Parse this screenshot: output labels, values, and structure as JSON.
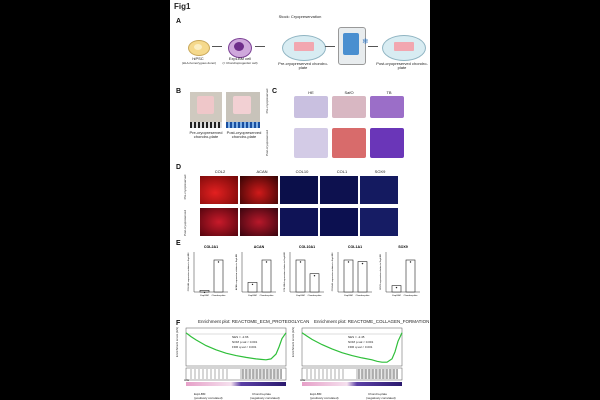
{
  "figure": {
    "title": "Fig1",
    "panels": {
      "a": "A",
      "b": "B",
      "c": "C",
      "d": "D",
      "e": "E",
      "f": "F"
    }
  },
  "panel_a": {
    "hipsc_title": "hiPSC",
    "hipsc_sub": "(HLA-homozygous donor)",
    "explbm_title": "ExpLBM cell",
    "explbm_sub": "(= Chondroprogenitor cell)",
    "pre_label": "Pre-cryopreserved chondro-plate",
    "stock_label": "Stock: Cryopreservation",
    "post_label": "Post-cryopreserved chondro-plate",
    "colors": {
      "hipsc": "#f5d98c",
      "explbm": "#8a4fa6",
      "plate": "#f2a7b0",
      "dish": "#d8ecf2"
    }
  },
  "panel_b": {
    "pre_label": "Pre-cryopreserved chondro-plate",
    "post_label": "Post-cryopreserved chondro-plate"
  },
  "panel_c": {
    "columns": [
      "HE",
      "SafO",
      "TB"
    ],
    "rows": [
      "Pre-cryopreserved",
      "Post-cryopreserved"
    ]
  },
  "panel_d": {
    "columns": [
      "COL2",
      "ACAN",
      "COL10",
      "COL1",
      "SOX9"
    ],
    "rows": [
      "Pre-cryopreserved",
      "Post-cryopreserved"
    ]
  },
  "panel_e": {
    "genes": [
      "COL2A1",
      "ACAN",
      "COL10A1",
      "COL1A1",
      "SOX9"
    ],
    "xlabels": [
      "ExpLBM",
      "Chondro-plate"
    ],
    "ylabels": [
      "COL2A1 expression relative to ExpLBM",
      "ACAN expression relative to ExpLBM",
      "COL10A1 expression relative to ExpLBM",
      "COL1A1 expression relative to ExpLBM",
      "SOX9 expression relative to ExpLBM"
    ]
  },
  "panel_f": {
    "plots": [
      {
        "title": "Enrichment plot: REACTOME_ECM_PROTEOGLYCAN",
        "nes": "NES = -2.66",
        "nom": "NOM p-val < 0.001",
        "fdr": "FDR q-val < 0.001"
      },
      {
        "title": "Enrichment plot: REACTOME_COLLAGEN_FORMATION",
        "nes": "NES = -2.45",
        "nom": "NOM p-val < 0.001",
        "fdr": "FDR q-val < 0.001"
      }
    ],
    "ylabel": "Enrichment score (ES)",
    "hits": "Hits",
    "left_group": "ExpLBM",
    "left_sub": "(positively correlated)",
    "right_group": "Chondro-plate",
    "right_sub": "(negatively correlated)",
    "curve_color": "#2fbf3a"
  },
  "chart_data": [
    {
      "type": "bar",
      "panel": "E",
      "categories": [
        "ExpLBM",
        "Chondro-plate"
      ],
      "series": [
        {
          "name": "COL2A1",
          "values": [
            0.05,
            1.0
          ]
        },
        {
          "name": "ACAN",
          "values": [
            0.3,
            1.0
          ]
        },
        {
          "name": "COL10A1",
          "values": [
            0.7,
            0.4
          ]
        },
        {
          "name": "COL1A1",
          "values": [
            1.0,
            0.95
          ]
        },
        {
          "name": "SOX9",
          "values": [
            0.2,
            1.0
          ]
        }
      ]
    },
    {
      "type": "line",
      "panel": "F-left",
      "x": [
        0,
        0.05,
        0.1,
        0.2,
        0.3,
        0.4,
        0.5,
        0.6,
        0.7,
        0.75,
        0.8,
        0.85,
        0.9,
        0.93,
        0.96,
        1.0
      ],
      "series": [
        {
          "values": [
            0,
            -0.08,
            -0.15,
            -0.27,
            -0.36,
            -0.43,
            -0.48,
            -0.52,
            -0.55,
            -0.56,
            -0.57,
            -0.55,
            -0.45,
            -0.3,
            -0.12,
            0
          ]
        }
      ]
    },
    {
      "type": "line",
      "panel": "F-right",
      "x": [
        0,
        0.05,
        0.1,
        0.2,
        0.3,
        0.4,
        0.5,
        0.6,
        0.7,
        0.75,
        0.8,
        0.85,
        0.9,
        0.93,
        0.96,
        1.0
      ],
      "series": [
        {
          "values": [
            0,
            -0.07,
            -0.14,
            -0.25,
            -0.34,
            -0.42,
            -0.48,
            -0.53,
            -0.57,
            -0.6,
            -0.62,
            -0.62,
            -0.55,
            -0.4,
            -0.18,
            0
          ]
        }
      ]
    }
  ]
}
